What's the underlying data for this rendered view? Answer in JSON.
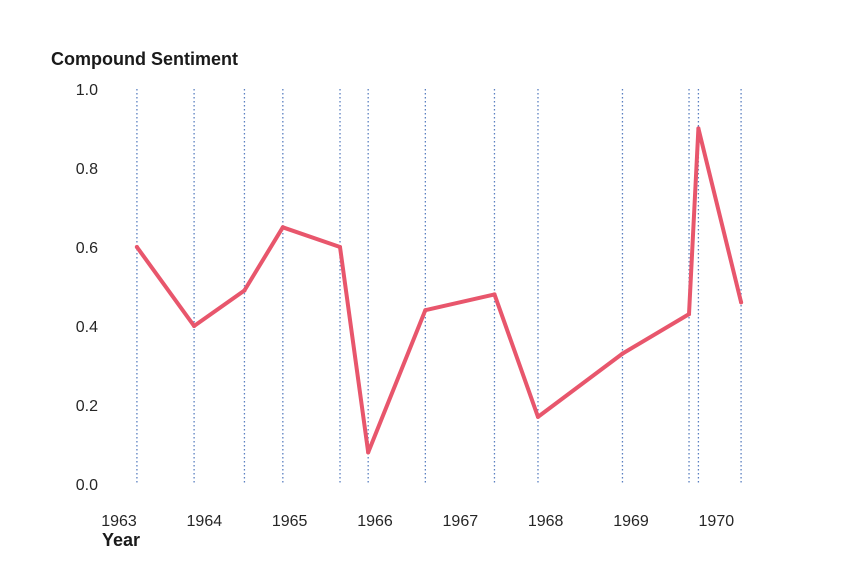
{
  "chart_data": {
    "type": "line",
    "title": "",
    "ylabel": "Compound Sentiment",
    "xlabel": "Year",
    "xlim": [
      1963.0,
      1970.5
    ],
    "ylim": [
      0.0,
      1.0
    ],
    "x_ticks": [
      "1963",
      "1964",
      "1965",
      "1966",
      "1967",
      "1968",
      "1969",
      "1970"
    ],
    "y_ticks": [
      "0.0",
      "0.2",
      "0.4",
      "0.6",
      "0.8",
      "1.0"
    ],
    "grid": "off",
    "legend": "none",
    "series": [
      {
        "color": "#e8566c",
        "x": [
          1963.21,
          1963.88,
          1964.47,
          1964.92,
          1965.59,
          1965.92,
          1966.59,
          1967.4,
          1967.91,
          1968.9,
          1969.68,
          1969.79,
          1970.29
        ],
        "y": [
          0.6,
          0.4,
          0.49,
          0.65,
          0.6,
          0.08,
          0.44,
          0.48,
          0.17,
          0.33,
          0.43,
          0.9,
          0.46
        ]
      }
    ],
    "event_lines": {
      "style": "dotted",
      "color": "#5a7fc0",
      "x": [
        1963.21,
        1963.88,
        1964.47,
        1964.92,
        1965.59,
        1965.92,
        1966.59,
        1967.4,
        1967.91,
        1968.9,
        1969.68,
        1969.79,
        1970.29
      ]
    }
  }
}
